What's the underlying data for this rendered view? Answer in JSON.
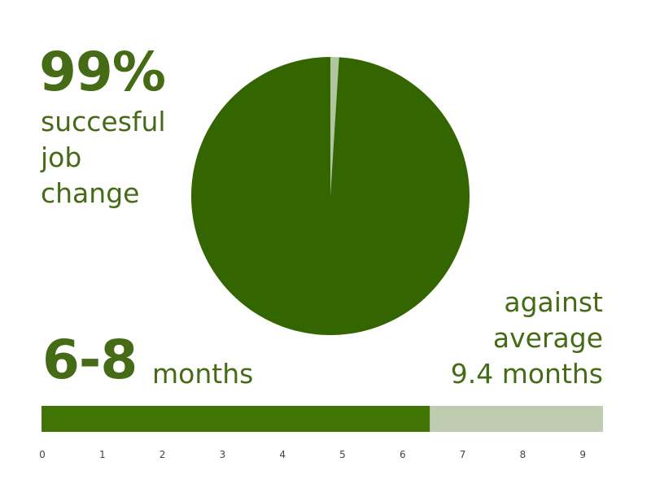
{
  "headline": {
    "value": "99%",
    "caption": [
      "succesful",
      "job",
      "change"
    ]
  },
  "duration": {
    "value": "6-8",
    "unit": "months"
  },
  "comparison": [
    "against",
    "average",
    "9.4 months"
  ],
  "colors": {
    "dark": "#336600",
    "bar_dark": "#417505",
    "light": "#b1c5a1",
    "bar_light": "#bfccb1",
    "text": "#456b17"
  },
  "chart_data": [
    {
      "type": "pie",
      "values": [
        99,
        1
      ],
      "colors": [
        "#336600",
        "#b1c5a1"
      ]
    },
    {
      "type": "bar",
      "orientation": "horizontal",
      "values": [
        6.5,
        9.4
      ],
      "colors": [
        "#417505",
        "#bfccb1"
      ],
      "xlim": [
        0,
        9.4
      ],
      "ticks": [
        "0",
        "1",
        "2",
        "3",
        "4",
        "5",
        "6",
        "7",
        "8",
        "9"
      ]
    }
  ]
}
